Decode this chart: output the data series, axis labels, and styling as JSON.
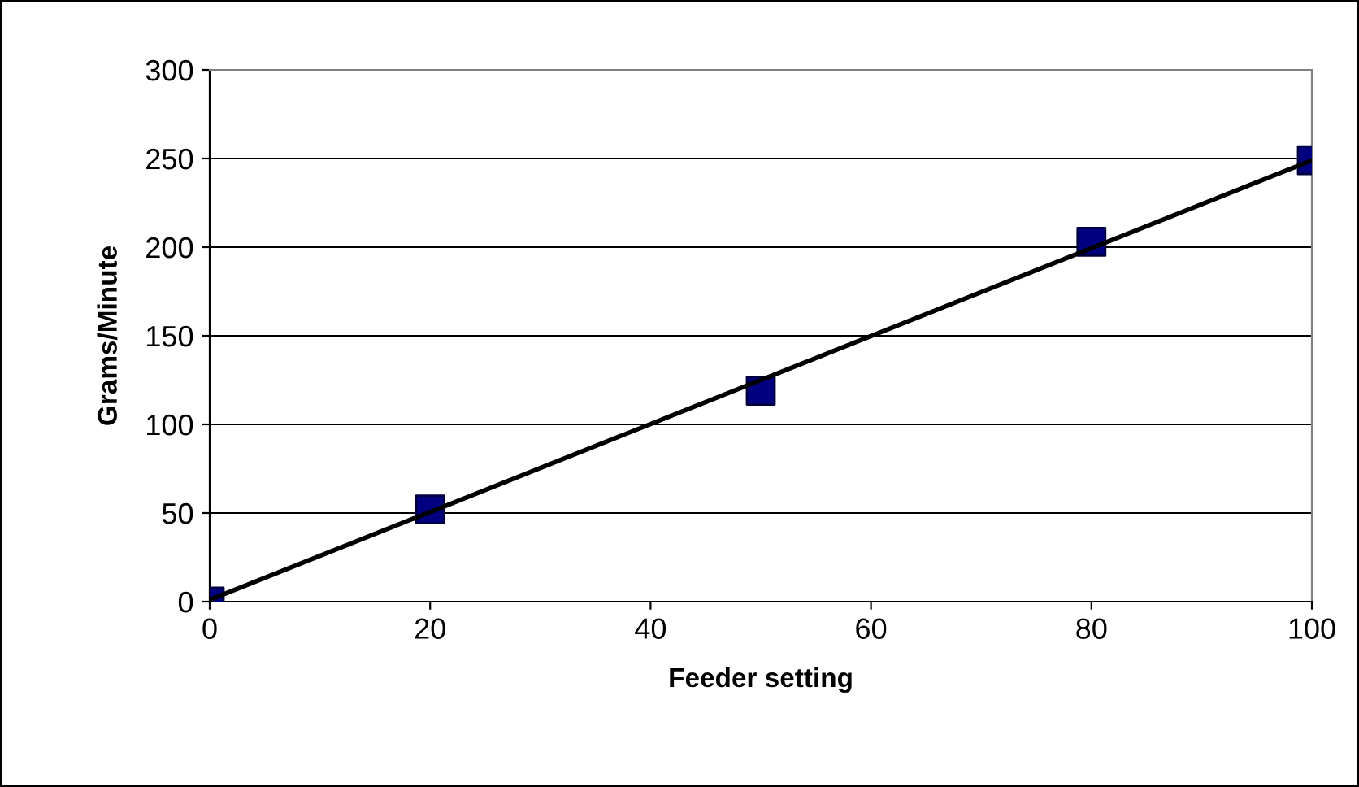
{
  "chart_data": {
    "type": "scatter",
    "xlabel": "Feeder setting",
    "ylabel": "Grams/Minute",
    "x": [
      0,
      20,
      50,
      80,
      100
    ],
    "series": [
      {
        "color": "#000080",
        "values": [
          0,
          52,
          119,
          203,
          249
        ],
        "marker": "square"
      },
      {
        "type": "line",
        "color": "#000000",
        "x": [
          0,
          100
        ],
        "values": [
          1,
          249
        ],
        "marker": "none",
        "line_style": "solid"
      }
    ],
    "xlim": [
      0,
      100
    ],
    "xticks": [
      0,
      20,
      40,
      60,
      80,
      100
    ],
    "ylim": [
      0,
      300
    ],
    "yticks": [
      0,
      50,
      100,
      150,
      200,
      250,
      300
    ],
    "grid": "y",
    "legend": false
  }
}
